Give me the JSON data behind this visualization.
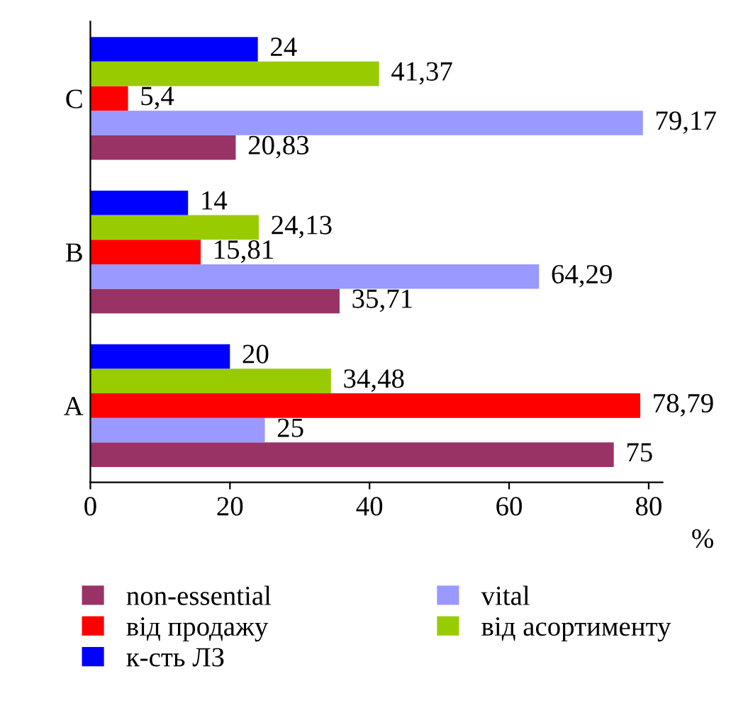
{
  "chart_data": {
    "type": "bar",
    "orientation": "horizontal",
    "categories": [
      "C",
      "B",
      "A"
    ],
    "xlabel": "%",
    "xlim": [
      0,
      82
    ],
    "xticks": [
      0,
      20,
      40,
      60,
      80
    ],
    "legend": "bottom",
    "grid": false,
    "series": [
      {
        "name": "non-essential",
        "color": "#993366",
        "values": [
          20.83,
          35.71,
          75
        ],
        "value_labels": [
          "20,83",
          "35,71",
          "75"
        ]
      },
      {
        "name": "vital",
        "color": "#9999ff",
        "values": [
          79.17,
          64.29,
          25
        ],
        "value_labels": [
          "79,17",
          "64,29",
          "25"
        ]
      },
      {
        "name": "від продажу",
        "color": "#ff0000",
        "values": [
          5.4,
          15.81,
          78.79
        ],
        "value_labels": [
          "5,4",
          "15,81",
          "78,79"
        ]
      },
      {
        "name": "від асортименту",
        "color": "#99cc00",
        "values": [
          41.37,
          24.13,
          34.48
        ],
        "value_labels": [
          "41,37",
          "24,13",
          "34,48"
        ]
      },
      {
        "name": "к-сть ЛЗ",
        "color": "#0000ff",
        "values": [
          24,
          14,
          20
        ],
        "value_labels": [
          "24",
          "14",
          "20"
        ]
      }
    ]
  }
}
